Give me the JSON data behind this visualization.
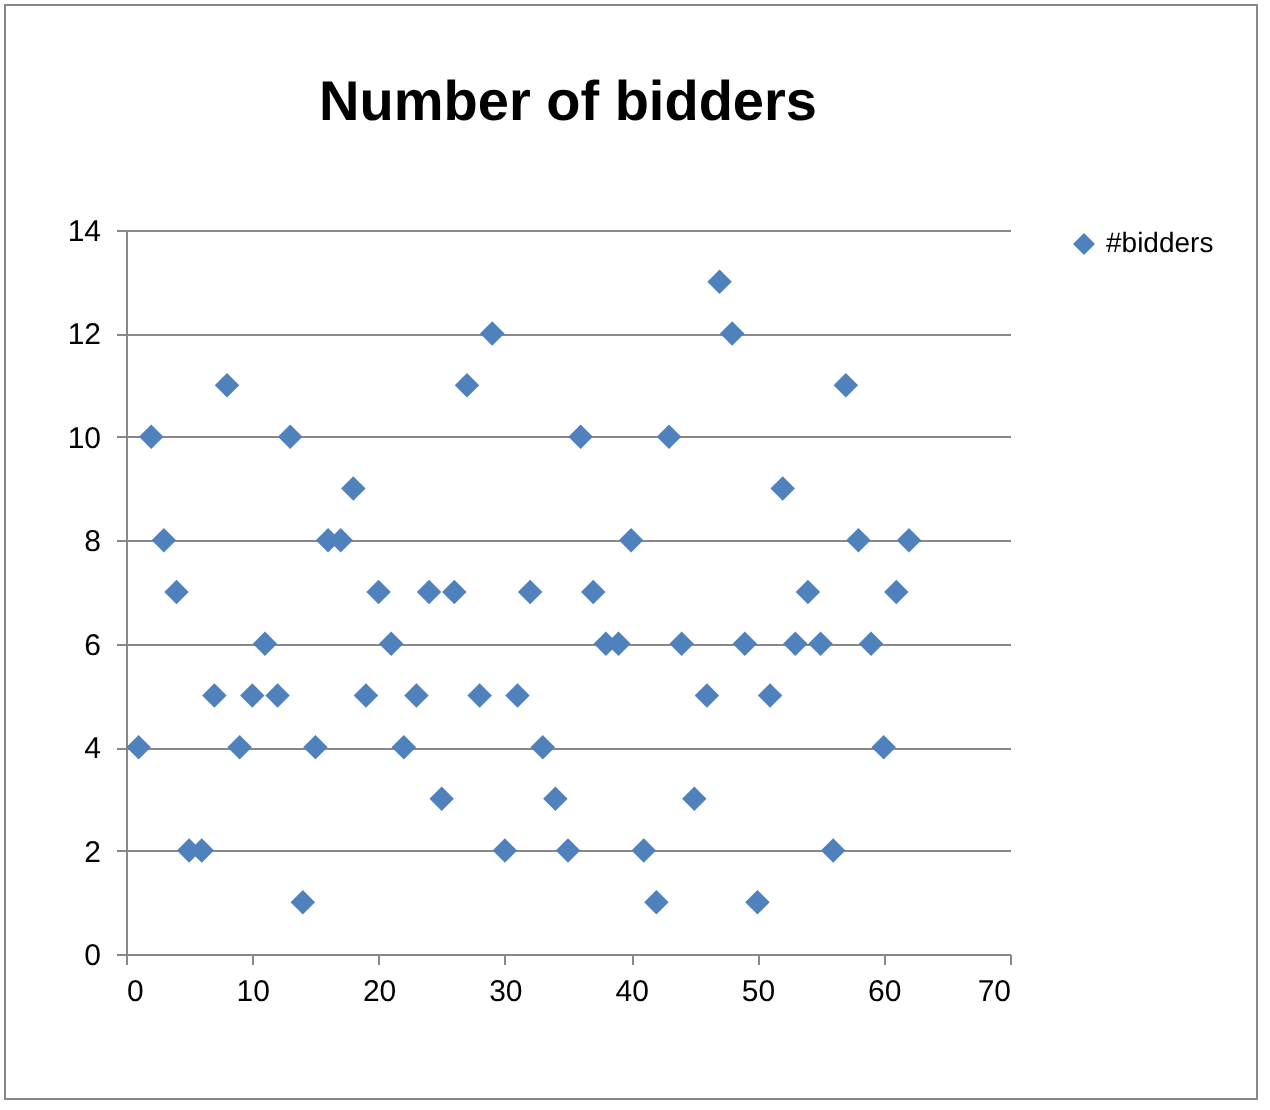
{
  "chart_data": {
    "type": "scatter",
    "title": "Number of bidders",
    "x": [
      1,
      2,
      3,
      4,
      5,
      6,
      7,
      8,
      9,
      10,
      11,
      12,
      13,
      14,
      15,
      16,
      17,
      18,
      19,
      20,
      21,
      22,
      23,
      24,
      25,
      26,
      27,
      28,
      29,
      30,
      31,
      32,
      33,
      34,
      35,
      36,
      37,
      38,
      39,
      40,
      41,
      42,
      43,
      44,
      45,
      46,
      47,
      48,
      49,
      50,
      51,
      52,
      53,
      54,
      55,
      56,
      57,
      58,
      59,
      60,
      61,
      62
    ],
    "series": [
      {
        "name": "#bidders",
        "color": "#4f81bd",
        "values": [
          4,
          10,
          8,
          7,
          2,
          2,
          5,
          11,
          4,
          5,
          6,
          5,
          10,
          1,
          4,
          8,
          8,
          9,
          5,
          7,
          6,
          4,
          5,
          7,
          3,
          7,
          11,
          5,
          12,
          2,
          5,
          7,
          4,
          3,
          2,
          10,
          7,
          6,
          6,
          8,
          2,
          1,
          10,
          6,
          3,
          5,
          13,
          12,
          6,
          1,
          5,
          9,
          6,
          7,
          6,
          2,
          11,
          8,
          6,
          4,
          7,
          8
        ]
      }
    ],
    "xlim": [
      0,
      70
    ],
    "xticks": [
      0,
      10,
      20,
      30,
      40,
      50,
      60,
      70
    ],
    "ylim": [
      0,
      14
    ],
    "yticks": [
      0,
      2,
      4,
      6,
      8,
      10,
      12,
      14
    ],
    "grid": "y",
    "legend": "right",
    "marker": "diamond"
  }
}
